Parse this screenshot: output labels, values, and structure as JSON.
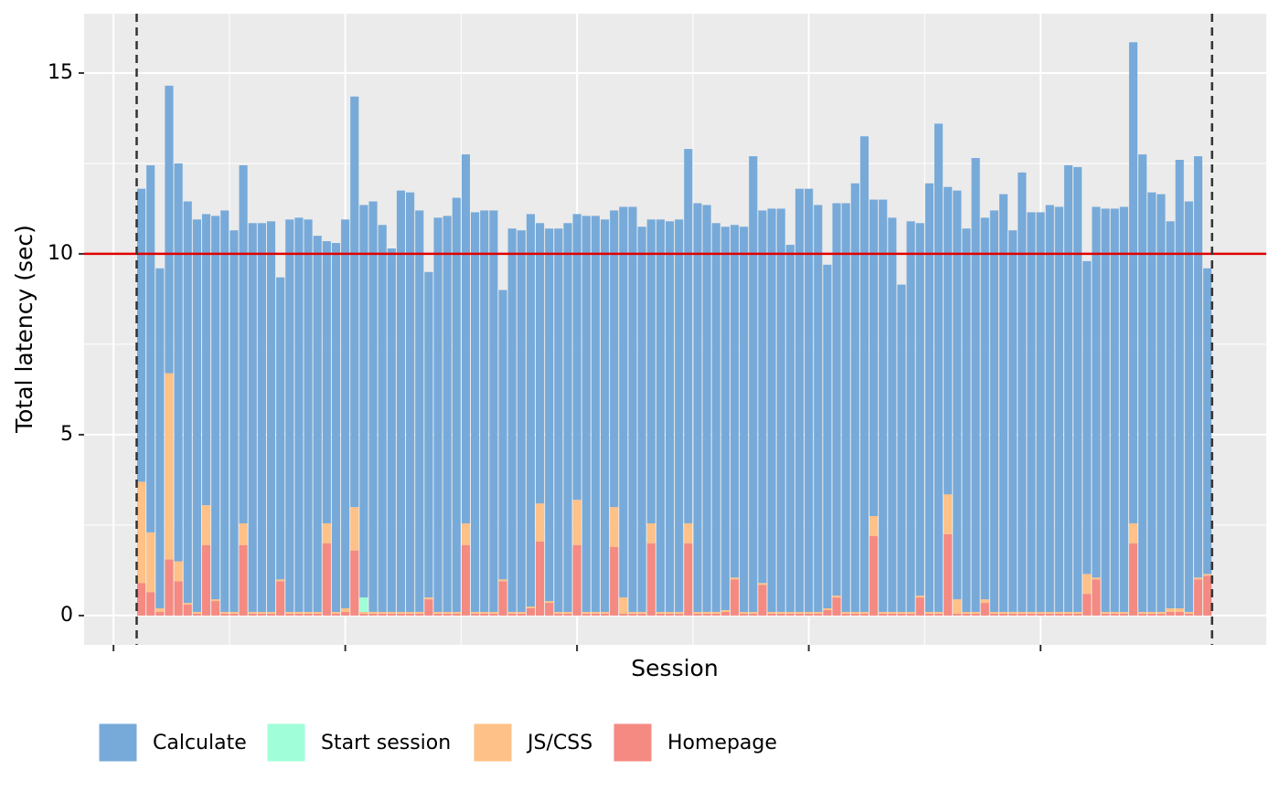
{
  "chart_data": {
    "type": "stacked_bar",
    "xlabel": "Session",
    "ylabel": "Total latency (sec)",
    "x": [
      3,
      4,
      5,
      6,
      7,
      8,
      9,
      10,
      11,
      12,
      13,
      14,
      15,
      16,
      17,
      18,
      19,
      20,
      21,
      22,
      23,
      24,
      25,
      26,
      27,
      28,
      29,
      30,
      31,
      32,
      33,
      34,
      35,
      36,
      37,
      38,
      39,
      40,
      41,
      42,
      43,
      44,
      45,
      46,
      47,
      48,
      49,
      50,
      51,
      52,
      53,
      54,
      55,
      56,
      57,
      58,
      59,
      60,
      61,
      62,
      63,
      64,
      65,
      66,
      67,
      68,
      69,
      70,
      71,
      72,
      73,
      74,
      75,
      76,
      77,
      78,
      79,
      80,
      81,
      82,
      83,
      84,
      85,
      86,
      87,
      88,
      89,
      90,
      91,
      92,
      93,
      94,
      95,
      96,
      97,
      98,
      99,
      100,
      101,
      102,
      103,
      104,
      105,
      106,
      107,
      108,
      109,
      110,
      111,
      112,
      113,
      114,
      115,
      116,
      117,
      118
    ],
    "series": [
      {
        "name": "Calculate",
        "color": "#77aad9",
        "values": [
          8.1,
          10.15,
          9.4,
          7.95,
          11.0,
          11.1,
          10.85,
          8.05,
          10.6,
          11.1,
          10.55,
          9.9,
          10.75,
          10.75,
          10.8,
          8.35,
          10.85,
          10.9,
          10.85,
          10.4,
          7.8,
          10.2,
          10.75,
          11.35,
          10.85,
          11.35,
          10.7,
          10.05,
          11.65,
          11.6,
          11.1,
          9.0,
          10.9,
          10.95,
          11.45,
          10.2,
          11.05,
          11.1,
          11.1,
          8.0,
          10.6,
          10.55,
          10.85,
          7.75,
          10.3,
          10.6,
          10.75,
          7.9,
          10.95,
          10.95,
          10.85,
          8.2,
          10.8,
          11.2,
          10.65,
          8.4,
          10.85,
          10.8,
          10.85,
          10.35,
          11.3,
          11.25,
          10.75,
          10.6,
          9.75,
          10.65,
          12.6,
          10.3,
          11.15,
          11.15,
          10.15,
          11.7,
          11.7,
          11.25,
          9.5,
          10.85,
          11.3,
          11.85,
          13.15,
          8.75,
          11.4,
          10.9,
          9.05,
          10.8,
          10.3,
          11.85,
          13.5,
          8.5,
          11.3,
          10.6,
          12.55,
          10.55,
          11.1,
          11.55,
          10.55,
          12.15,
          11.05,
          11.05,
          11.25,
          11.2,
          12.35,
          12.3,
          8.65,
          10.25,
          11.15,
          11.15,
          11.2,
          13.3,
          12.65,
          11.6,
          11.55,
          10.7,
          12.4,
          11.35,
          11.65,
          8.45
        ]
      },
      {
        "name": "Start session",
        "color": "#a0ffd8",
        "values": [
          0,
          0,
          0,
          0,
          0,
          0,
          0,
          0,
          0,
          0,
          0,
          0,
          0,
          0,
          0,
          0,
          0,
          0,
          0,
          0,
          0,
          0,
          0,
          0,
          0.4,
          0,
          0,
          0,
          0,
          0,
          0,
          0,
          0,
          0,
          0,
          0,
          0,
          0,
          0,
          0,
          0,
          0,
          0,
          0,
          0,
          0,
          0,
          0,
          0,
          0,
          0,
          0,
          0,
          0,
          0,
          0,
          0,
          0,
          0,
          0,
          0,
          0,
          0,
          0,
          0,
          0,
          0,
          0,
          0,
          0,
          0,
          0,
          0,
          0,
          0,
          0,
          0,
          0,
          0,
          0,
          0,
          0,
          0,
          0,
          0,
          0,
          0,
          0,
          0,
          0,
          0,
          0,
          0,
          0,
          0,
          0,
          0,
          0,
          0,
          0,
          0,
          0,
          0,
          0,
          0,
          0,
          0,
          0,
          0,
          0,
          0,
          0,
          0,
          0,
          0,
          0
        ]
      },
      {
        "name": "JS/CSS",
        "color": "#fec187",
        "values": [
          2.8,
          1.65,
          0.1,
          5.15,
          0.55,
          0.05,
          0.05,
          1.1,
          0.05,
          0.05,
          0.05,
          0.6,
          0.05,
          0.05,
          0.05,
          0.05,
          0.05,
          0.05,
          0.05,
          0.05,
          0.55,
          0.05,
          0.1,
          1.2,
          0.05,
          0.05,
          0.05,
          0.05,
          0.05,
          0.05,
          0.05,
          0.05,
          0.05,
          0.05,
          0.05,
          0.6,
          0.05,
          0.05,
          0.05,
          0.05,
          0.05,
          0.05,
          0.05,
          1.05,
          0.05,
          0.05,
          0.05,
          1.25,
          0.05,
          0.05,
          0.05,
          1.1,
          0.45,
          0.05,
          0.05,
          0.55,
          0.05,
          0.05,
          0.05,
          0.55,
          0.05,
          0.05,
          0.05,
          0.05,
          0.05,
          0.05,
          0.05,
          0.05,
          0.05,
          0.05,
          0.05,
          0.05,
          0.05,
          0.05,
          0.05,
          0.05,
          0.05,
          0.05,
          0.05,
          0.55,
          0.05,
          0.05,
          0.05,
          0.05,
          0.05,
          0.05,
          0.05,
          1.1,
          0.4,
          0.05,
          0.05,
          0.1,
          0.05,
          0.05,
          0.05,
          0.05,
          0.05,
          0.05,
          0.05,
          0.05,
          0.05,
          0.05,
          0.55,
          0.05,
          0.05,
          0.05,
          0.05,
          0.55,
          0.05,
          0.05,
          0.05,
          0.1,
          0.1,
          0.05,
          0.05,
          0.05
        ]
      },
      {
        "name": "Homepage",
        "color": "#f48a82",
        "values": [
          0.9,
          0.65,
          0.1,
          1.55,
          0.95,
          0.3,
          0.05,
          1.95,
          0.4,
          0.05,
          0.05,
          1.95,
          0.05,
          0.05,
          0.05,
          0.95,
          0.05,
          0.05,
          0.05,
          0.05,
          2.0,
          0.05,
          0.1,
          1.8,
          0.05,
          0.05,
          0.05,
          0.05,
          0.05,
          0.05,
          0.05,
          0.45,
          0.05,
          0.05,
          0.05,
          1.95,
          0.05,
          0.05,
          0.05,
          0.95,
          0.05,
          0.05,
          0.2,
          2.05,
          0.35,
          0.05,
          0.05,
          1.95,
          0.05,
          0.05,
          0.05,
          1.9,
          0.05,
          0.05,
          0.05,
          2.0,
          0.05,
          0.05,
          0.05,
          2.0,
          0.05,
          0.05,
          0.05,
          0.1,
          1.0,
          0.05,
          0.05,
          0.85,
          0.05,
          0.05,
          0.05,
          0.05,
          0.05,
          0.05,
          0.15,
          0.5,
          0.05,
          0.05,
          0.05,
          2.2,
          0.05,
          0.05,
          0.05,
          0.05,
          0.5,
          0.05,
          0.05,
          2.25,
          0.05,
          0.05,
          0.05,
          0.35,
          0.05,
          0.05,
          0.05,
          0.05,
          0.05,
          0.05,
          0.05,
          0.05,
          0.05,
          0.05,
          0.6,
          1.0,
          0.05,
          0.05,
          0.05,
          2.0,
          0.05,
          0.05,
          0.05,
          0.1,
          0.1,
          0.05,
          1.0,
          1.1
        ]
      }
    ],
    "xlim": [
      -3.17,
      124.35
    ],
    "ylim": [
      -0.81,
      16.64
    ],
    "xticks": [
      0,
      25,
      50,
      75,
      100
    ],
    "yticks": [
      0,
      5,
      10,
      15
    ],
    "grid": true,
    "hline": 10,
    "hline_color": "#e00000",
    "vlines": [
      2.5,
      118.5
    ],
    "legend": "bottom"
  }
}
